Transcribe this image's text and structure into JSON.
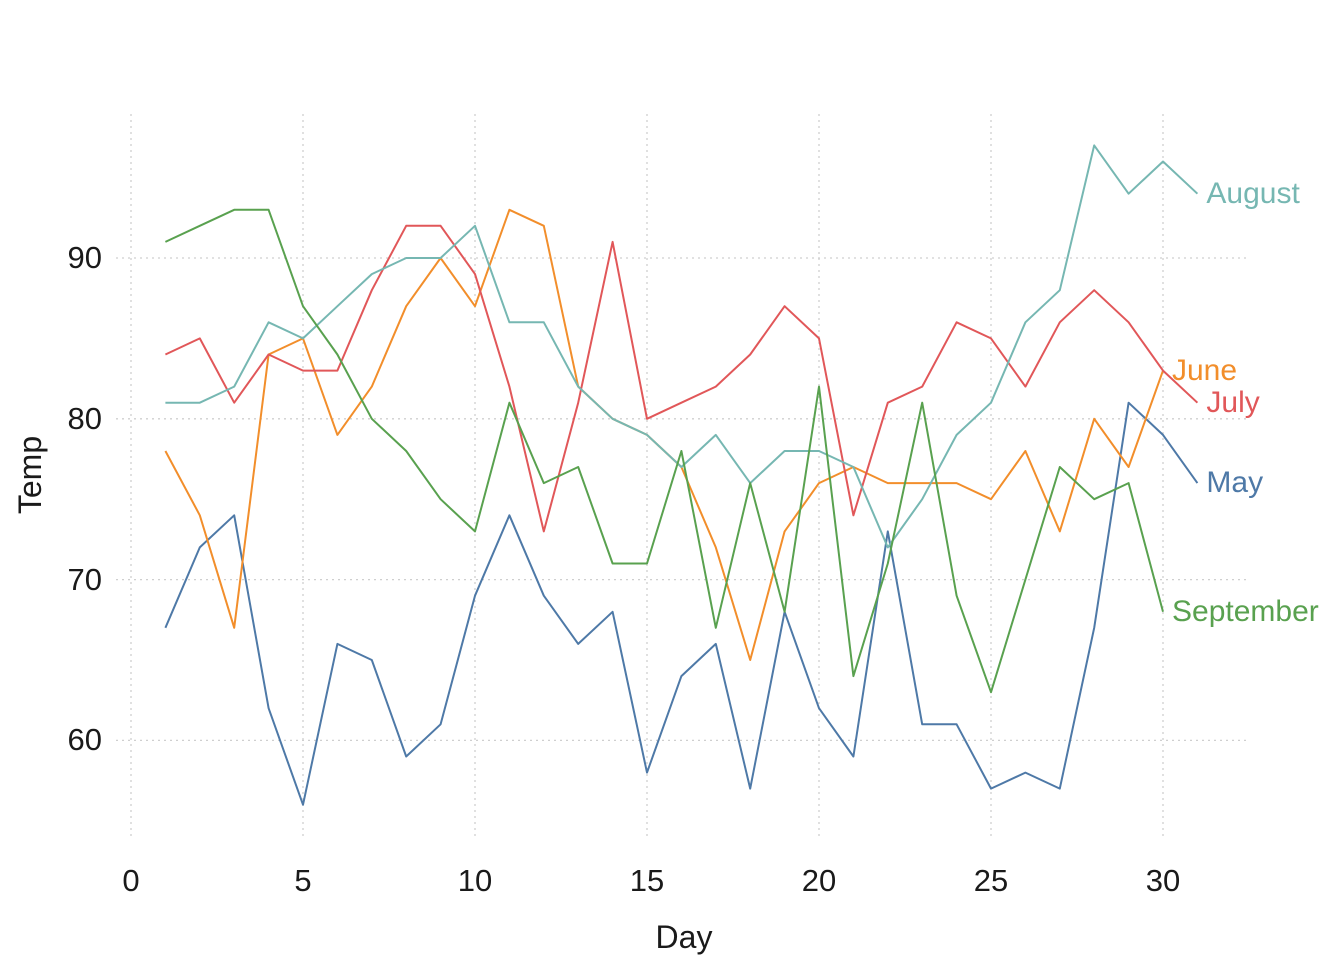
{
  "chart_data": {
    "type": "line",
    "title": "",
    "xlabel": "Day",
    "ylabel": "Temp",
    "x_ticks": [
      0,
      5,
      10,
      15,
      20,
      25,
      30
    ],
    "y_ticks": [
      60,
      70,
      80,
      90
    ],
    "xlim": [
      -0.5,
      32.5
    ],
    "ylim": [
      54,
      99
    ],
    "grid": "major gridlines, light gray dashed, both axes",
    "legend_position": "direct labels at right end of each line",
    "x_start_day": 1,
    "series": [
      {
        "name": "May",
        "color": "#4e79a7",
        "values": [
          67,
          72,
          74,
          62,
          56,
          66,
          65,
          59,
          61,
          69,
          74,
          69,
          66,
          68,
          58,
          64,
          66,
          57,
          68,
          62,
          59,
          73,
          61,
          61,
          57,
          58,
          57,
          67,
          81,
          79,
          76
        ]
      },
      {
        "name": "June",
        "color": "#f28e2b",
        "values": [
          78,
          74,
          67,
          84,
          85,
          79,
          82,
          87,
          90,
          87,
          93,
          92,
          82,
          80,
          79,
          77,
          72,
          65,
          73,
          76,
          77,
          76,
          76,
          76,
          75,
          78,
          73,
          80,
          77,
          83
        ]
      },
      {
        "name": "July",
        "color": "#e15759",
        "values": [
          84,
          85,
          81,
          84,
          83,
          83,
          88,
          92,
          92,
          89,
          82,
          73,
          81,
          91,
          80,
          81,
          82,
          84,
          87,
          85,
          74,
          81,
          82,
          86,
          85,
          82,
          86,
          88,
          86,
          83,
          81
        ]
      },
      {
        "name": "August",
        "color": "#76b7b2",
        "values": [
          81,
          81,
          82,
          86,
          85,
          87,
          89,
          90,
          90,
          92,
          86,
          86,
          82,
          80,
          79,
          77,
          79,
          76,
          78,
          78,
          77,
          72,
          75,
          79,
          81,
          86,
          88,
          97,
          94,
          96,
          94
        ]
      },
      {
        "name": "September",
        "color": "#59a14f",
        "values": [
          91,
          92,
          93,
          93,
          87,
          84,
          80,
          78,
          75,
          73,
          81,
          76,
          77,
          71,
          71,
          78,
          67,
          76,
          68,
          82,
          64,
          71,
          81,
          69,
          63,
          70,
          77,
          75,
          76,
          68
        ]
      }
    ]
  },
  "colors": {
    "background": "#ffffff",
    "gridline": "#cfcfcf",
    "tick_text": "#1a1a1a",
    "axis_title_text": "#1a1a1a"
  }
}
